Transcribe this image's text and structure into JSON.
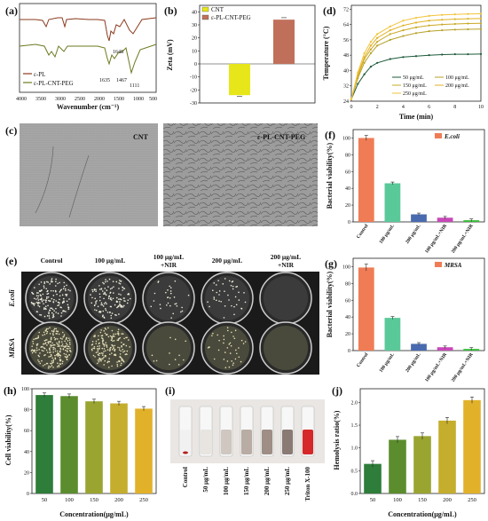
{
  "panel_letters": [
    "(a)",
    "(b)",
    "(c)",
    "(d)",
    "(e)",
    "(f)",
    "(g)",
    "(h)",
    "(i)",
    "(j)"
  ],
  "panel_a": {
    "legend": [
      "ε-PL",
      "ε-PL-CNT-PEG"
    ],
    "xlabel": "Wavenumber (cm⁻¹)",
    "xticks": [
      "4000",
      "3500",
      "3000",
      "2500",
      "2000",
      "1500",
      "1000",
      "500"
    ],
    "annotations": [
      "1648",
      "1635",
      "1467",
      "1111"
    ],
    "colors": {
      "epl": "#8b3a1e",
      "peg": "#6a7a1e"
    }
  },
  "panel_b": {
    "legend": [
      "CNT",
      "ε-PL-CNT-PEG"
    ],
    "ylabel": "Zeta (mV)",
    "yticks": [
      "40",
      "30",
      "20",
      "10",
      "0",
      "-10",
      "-20",
      "-30"
    ],
    "colors": {
      "cnt": "#e6e61a",
      "peg": "#c0705a"
    }
  },
  "panel_c": {
    "labels": [
      "CNT",
      "ε-PL-CNT-PEG"
    ]
  },
  "panel_d": {
    "ylabel": "Temperature (°C)",
    "xlabel": "Time (min)",
    "yticks": [
      "24",
      "32",
      "40",
      "48",
      "56",
      "64",
      "72"
    ],
    "xticks": [
      "0",
      "2",
      "4",
      "6",
      "8",
      "10"
    ],
    "legend": [
      "50 μg/mL",
      "100 μg/mL",
      "150 μg/mL",
      "200 μg/mL",
      "250 μg/mL"
    ]
  },
  "panel_e": {
    "col_headers": [
      "Control",
      "100 μg/mL",
      "100 μg/mL\n+NIR",
      "200 μg/mL",
      "200 μg/mL\n+NIR"
    ],
    "row_labels": [
      "E.coli",
      "MRSA"
    ]
  },
  "panel_f": {
    "ylabel": "Bacterial viability(%)",
    "legend": "E.coli",
    "yticks": [
      "0",
      "20",
      "40",
      "60",
      "80",
      "100"
    ],
    "categories": [
      "Control",
      "100 μg/mL",
      "200 μg/mL",
      "100 μg/mL+NIR",
      "200 μg/mL+NIR"
    ]
  },
  "panel_g": {
    "ylabel": "Bacterial viability(%)",
    "legend": "MRSA",
    "yticks": [
      "0",
      "20",
      "40",
      "60",
      "80",
      "100"
    ],
    "categories": [
      "Control",
      "100 μg/mL",
      "200 μg/mL",
      "100 μg/mL+NIR",
      "200 μg/mL+NIR"
    ]
  },
  "panel_h": {
    "ylabel": "Cell viability(%)",
    "xlabel": "Concentration(μg/mL)",
    "yticks": [
      "0",
      "20",
      "40",
      "60",
      "80",
      "100"
    ],
    "categories": [
      "50",
      "100",
      "150",
      "200",
      "250"
    ]
  },
  "panel_i": {
    "labels": [
      "Control",
      "50 μg/mL",
      "100 μg/mL",
      "150 μg/mL",
      "200 μg/mL",
      "250 μg/mL",
      "Triton X-100"
    ]
  },
  "panel_j": {
    "ylabel": "Hemolysis ratio(%)",
    "xlabel": "Concentration(μg/mL)",
    "yticks": [
      "0.0",
      "0.5",
      "1.0",
      "1.5",
      "2.0"
    ],
    "categories": [
      "50",
      "100",
      "150",
      "200",
      "250"
    ]
  },
  "chart_data": [
    {
      "panel": "b",
      "type": "bar",
      "categories": [
        "CNT",
        "ε-PL-CNT-PEG"
      ],
      "values": [
        -24,
        34
      ],
      "ylim": [
        -30,
        45
      ],
      "ylabel": "Zeta (mV)"
    },
    {
      "panel": "d",
      "type": "line",
      "x": [
        0,
        0.5,
        1,
        1.5,
        2,
        3,
        4,
        5,
        6,
        7,
        8,
        9,
        10
      ],
      "ylim": [
        24,
        74
      ],
      "xlim": [
        0,
        10
      ],
      "series": [
        {
          "name": "50 μg/mL",
          "color": "#1d5a3a",
          "values": [
            25,
            33,
            38,
            42,
            44,
            46,
            47,
            47.5,
            48,
            48.3,
            48.5,
            48.5,
            48.6
          ]
        },
        {
          "name": "100 μg/mL",
          "color": "#b6a12a",
          "values": [
            25,
            36,
            44,
            49,
            53,
            56,
            58,
            59.5,
            60.5,
            61,
            61.3,
            61.5,
            61.6
          ]
        },
        {
          "name": "150 μg/mL",
          "color": "#c9a823",
          "values": [
            25,
            37,
            46,
            51,
            55,
            59,
            61,
            62.5,
            63.5,
            64,
            64.3,
            64.5,
            64.6
          ]
        },
        {
          "name": "200 μg/mL",
          "color": "#e0b126",
          "values": [
            25,
            38,
            47,
            53,
            57,
            61,
            63.5,
            65,
            66,
            66.5,
            66.8,
            67,
            67.1
          ]
        },
        {
          "name": "250 μg/mL",
          "color": "#f2c33a",
          "values": [
            25,
            39,
            49,
            55,
            59,
            63,
            66,
            67.5,
            68.5,
            69,
            69.3,
            69.5,
            69.6
          ]
        }
      ]
    },
    {
      "panel": "f",
      "type": "bar",
      "categories": [
        "Control",
        "100 μg/mL",
        "200 μg/mL",
        "100 μg/mL+NIR",
        "200 μg/mL+NIR"
      ],
      "values": [
        100,
        46,
        9,
        5,
        2
      ],
      "ylim": [
        0,
        110
      ],
      "colors": [
        "#f07c55",
        "#5ac99a",
        "#4a6ab0",
        "#c848b8",
        "#38c038"
      ]
    },
    {
      "panel": "g",
      "type": "bar",
      "categories": [
        "Control",
        "100 μg/mL",
        "200 μg/mL",
        "100 μg/mL+NIR",
        "200 μg/mL+NIR"
      ],
      "values": [
        99,
        39,
        8,
        4,
        2
      ],
      "ylim": [
        0,
        110
      ],
      "colors": [
        "#f07c55",
        "#5ac99a",
        "#4a6ab0",
        "#c848b8",
        "#38c038"
      ]
    },
    {
      "panel": "h",
      "type": "bar",
      "categories": [
        "50",
        "100",
        "150",
        "200",
        "250"
      ],
      "values": [
        94,
        93,
        88,
        86,
        81
      ],
      "ylim": [
        0,
        100
      ],
      "colors": [
        "#2e7d3a",
        "#5b8d2e",
        "#9aa431",
        "#c5ad2d",
        "#e2b12a"
      ]
    },
    {
      "panel": "j",
      "type": "bar",
      "categories": [
        "50",
        "100",
        "150",
        "200",
        "250"
      ],
      "values": [
        0.65,
        1.18,
        1.26,
        1.6,
        2.05
      ],
      "ylim": [
        0,
        2.3
      ],
      "colors": [
        "#2e7d3a",
        "#5b8d2e",
        "#9aa431",
        "#c5ad2d",
        "#e2b12a"
      ]
    }
  ]
}
